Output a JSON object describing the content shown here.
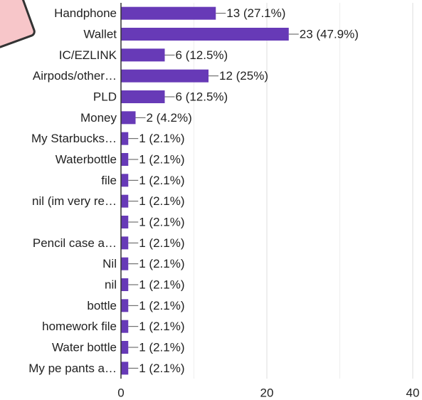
{
  "chart_data": {
    "type": "hbar",
    "categories": [
      "Handphone",
      "Wallet",
      "IC/EZLINK",
      "Airpods/other…",
      "PLD",
      "Money",
      "My Starbucks…",
      "Waterbottle",
      "file",
      "nil (im very re…",
      null,
      "Pencil case a…",
      "Nil",
      "nil",
      "bottle",
      "homework file",
      "Water bottle",
      "My pe pants a…"
    ],
    "values": [
      13,
      23,
      6,
      12,
      6,
      2,
      1,
      1,
      1,
      1,
      1,
      1,
      1,
      1,
      1,
      1,
      1,
      1
    ],
    "value_labels": [
      "13 (27.1%)",
      "23 (47.9%)",
      "6 (12.5%)",
      "12 (25%)",
      "6 (12.5%)",
      "2 (4.2%)",
      "1 (2.1%)",
      "1 (2.1%)",
      "1 (2.1%)",
      "1 (2.1%)",
      "1 (2.1%)",
      "1 (2.1%)",
      "1 (2.1%)",
      "1 (2.1%)",
      "1 (2.1%)",
      "1 (2.1%)",
      "1 (2.1%)",
      "1 (2.1%)"
    ],
    "color": "#673ab7",
    "xlim": [
      0,
      40
    ],
    "xticks": [
      0,
      20,
      40
    ],
    "minor_xticks": [
      10,
      30
    ],
    "grid": true
  }
}
